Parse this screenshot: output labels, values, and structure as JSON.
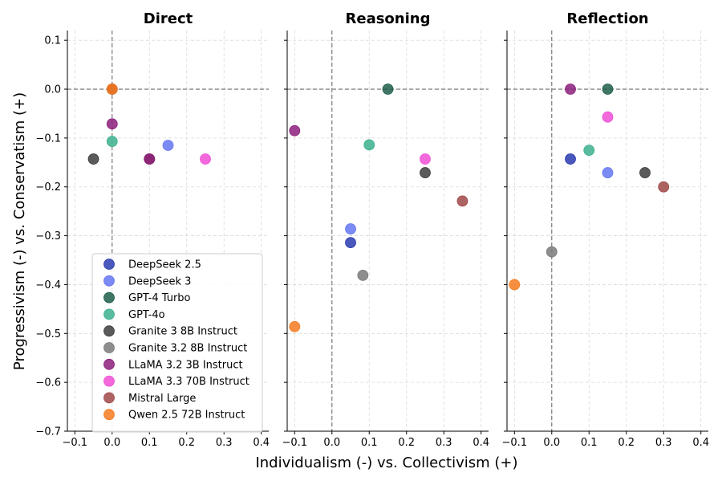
{
  "chart_data": {
    "type": "scatter",
    "xlabel": "Individualism (-) vs. Collectivism (+)",
    "ylabel": "Progressivism (-) vs. Conservatism (+)",
    "xlim": [
      -0.12,
      0.42
    ],
    "ylim": [
      -0.7,
      0.12
    ],
    "xticks": [
      -0.1,
      0.0,
      0.1,
      0.2,
      0.3,
      0.4
    ],
    "xtick_labels": [
      "−0.1",
      "0.0",
      "0.1",
      "0.2",
      "0.3",
      "0.4"
    ],
    "yticks": [
      0.1,
      0.0,
      -0.1,
      -0.2,
      -0.3,
      -0.4,
      -0.5,
      -0.6,
      -0.7
    ],
    "ytick_labels": [
      "0.1",
      "0.0",
      "−0.1",
      "−0.2",
      "−0.3",
      "−0.4",
      "−0.5",
      "−0.6",
      "−0.7"
    ],
    "grid": true,
    "legend_position": "lower-left of first panel",
    "series": [
      {
        "name": "DeepSeek 2.5",
        "color": "#2a3bb0"
      },
      {
        "name": "DeepSeek 3",
        "color": "#6577f2"
      },
      {
        "name": "GPT-4 Turbo",
        "color": "#1f5e4a"
      },
      {
        "name": "GPT-4o",
        "color": "#3cb08e"
      },
      {
        "name": "Granite 3 8B Instruct",
        "color": "#3d3d3d"
      },
      {
        "name": "Granite 3.2 8B Instruct",
        "color": "#7a7a7a"
      },
      {
        "name": "LLaMA 3.2 3B Instruct",
        "color": "#8c1e7c"
      },
      {
        "name": "LLaMA 3.3 70B Instruct",
        "color": "#f04fd6"
      },
      {
        "name": "Mistral Large",
        "color": "#a04848"
      },
      {
        "name": "Qwen 2.5 72B Instruct",
        "color": "#f47b20"
      }
    ],
    "panels": [
      {
        "title": "Direct",
        "points": [
          {
            "series": "Granite 3 8B Instruct",
            "x": -0.05,
            "y": -0.143
          },
          {
            "series": "GPT-4 Turbo",
            "x": 0.0,
            "y": 0.0
          },
          {
            "series": "Mistral Large",
            "x": 0.0,
            "y": 0.0
          },
          {
            "series": "Qwen 2.5 72B Instruct",
            "x": 0.0,
            "y": 0.0
          },
          {
            "series": "LLaMA 3.2 3B Instruct",
            "x": 0.0,
            "y": -0.071
          },
          {
            "series": "GPT-4o",
            "x": 0.0,
            "y": -0.107
          },
          {
            "series": "Granite 3 8B Instruct",
            "x": 0.1,
            "y": -0.143
          },
          {
            "series": "Mistral Large",
            "x": 0.1,
            "y": -0.143
          },
          {
            "series": "LLaMA 3.2 3B Instruct",
            "x": 0.1,
            "y": -0.143
          },
          {
            "series": "DeepSeek 3",
            "x": 0.15,
            "y": -0.115
          },
          {
            "series": "LLaMA 3.3 70B Instruct",
            "x": 0.25,
            "y": -0.143
          }
        ]
      },
      {
        "title": "Reasoning",
        "points": [
          {
            "series": "LLaMA 3.2 3B Instruct",
            "x": -0.1,
            "y": -0.085
          },
          {
            "series": "Qwen 2.5 72B Instruct",
            "x": -0.1,
            "y": -0.486
          },
          {
            "series": "DeepSeek 3",
            "x": 0.05,
            "y": -0.286
          },
          {
            "series": "DeepSeek 2.5",
            "x": 0.05,
            "y": -0.314
          },
          {
            "series": "Granite 3.2 8B Instruct",
            "x": 0.083,
            "y": -0.381
          },
          {
            "series": "GPT-4o",
            "x": 0.1,
            "y": -0.114
          },
          {
            "series": "GPT-4 Turbo",
            "x": 0.15,
            "y": 0.0
          },
          {
            "series": "LLaMA 3.3 70B Instruct",
            "x": 0.25,
            "y": -0.143
          },
          {
            "series": "Granite 3 8B Instruct",
            "x": 0.25,
            "y": -0.171
          },
          {
            "series": "Mistral Large",
            "x": 0.35,
            "y": -0.229
          }
        ]
      },
      {
        "title": "Reflection",
        "points": [
          {
            "series": "Qwen 2.5 72B Instruct",
            "x": -0.1,
            "y": -0.4
          },
          {
            "series": "Granite 3.2 8B Instruct",
            "x": 0.0,
            "y": -0.333
          },
          {
            "series": "LLaMA 3.2 3B Instruct",
            "x": 0.05,
            "y": 0.0
          },
          {
            "series": "DeepSeek 2.5",
            "x": 0.05,
            "y": -0.143
          },
          {
            "series": "GPT-4o",
            "x": 0.1,
            "y": -0.125
          },
          {
            "series": "GPT-4 Turbo",
            "x": 0.15,
            "y": 0.0
          },
          {
            "series": "LLaMA 3.3 70B Instruct",
            "x": 0.15,
            "y": -0.057
          },
          {
            "series": "DeepSeek 3",
            "x": 0.15,
            "y": -0.171
          },
          {
            "series": "Granite 3 8B Instruct",
            "x": 0.25,
            "y": -0.171
          },
          {
            "series": "Mistral Large",
            "x": 0.3,
            "y": -0.2
          }
        ]
      }
    ]
  }
}
